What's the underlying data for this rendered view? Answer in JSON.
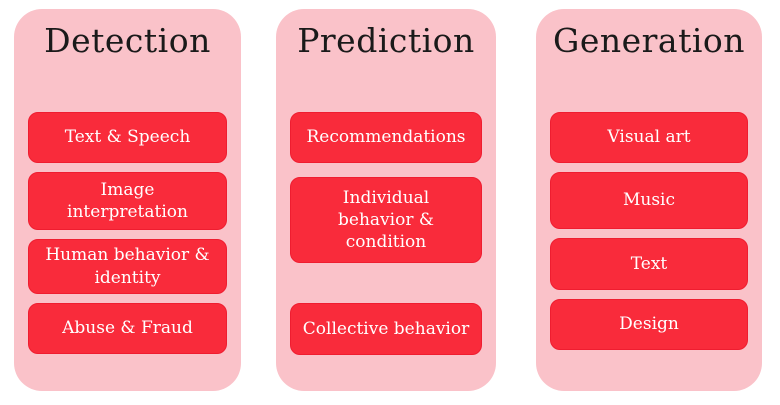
{
  "diagram": {
    "columns": [
      {
        "title": "Detection",
        "items": [
          "Text & Speech",
          "Image interpretation",
          "Human behavior & identity",
          "Abuse & Fraud"
        ]
      },
      {
        "title": "Prediction",
        "items": [
          "Recommendations",
          "Individual behavior & condition",
          "Collective behavior"
        ]
      },
      {
        "title": "Generation",
        "items": [
          "Visual art",
          "Music",
          "Text",
          "Design"
        ]
      }
    ]
  },
  "colors": {
    "page_bg": "#ffffff",
    "panel_bg": "#fac2c9",
    "node_bg": "#f92b3b",
    "node_border": "#ef1d30",
    "node_text": "#ffffff",
    "title_text": "#1a1a1a"
  }
}
